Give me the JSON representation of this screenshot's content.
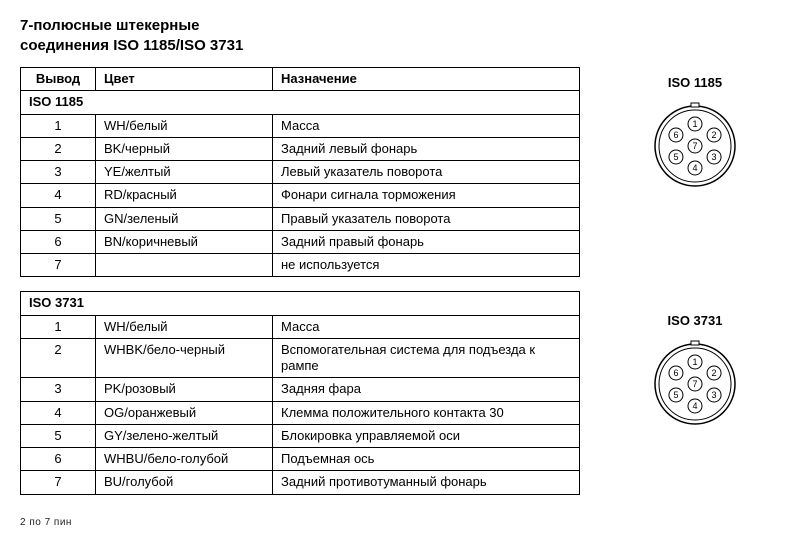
{
  "title_line1": "7-полюсные штекерные",
  "title_line2": "соединения ISO 1185/ISO 3731",
  "headers": {
    "pin": "Вывод",
    "color": "Цвет",
    "func": "Назначение"
  },
  "table1": {
    "section": "ISO 1185",
    "rows": [
      {
        "pin": "1",
        "color": "WH/белый",
        "func": "Масса"
      },
      {
        "pin": "2",
        "color": "BK/черный",
        "func": "Задний левый фонарь"
      },
      {
        "pin": "3",
        "color": "YE/желтый",
        "func": "Левый указатель поворота"
      },
      {
        "pin": "4",
        "color": "RD/красный",
        "func": "Фонари сигнала торможения"
      },
      {
        "pin": "5",
        "color": "GN/зеленый",
        "func": "Правый указатель поворота"
      },
      {
        "pin": "6",
        "color": "BN/коричневый",
        "func": "Задний правый фонарь"
      },
      {
        "pin": "7",
        "color": "",
        "func": "не используется"
      }
    ]
  },
  "table2": {
    "section": "ISO 3731",
    "rows": [
      {
        "pin": "1",
        "color": "WH/белый",
        "func": "Масса"
      },
      {
        "pin": "2",
        "color": "WHBK/бело-черный",
        "func": "Вспомогательная система для подъезда к рампе"
      },
      {
        "pin": "3",
        "color": "PK/розовый",
        "func": "Задняя фара"
      },
      {
        "pin": "4",
        "color": "OG/оранжевый",
        "func": "Клемма положительного контакта 30"
      },
      {
        "pin": "5",
        "color": "GY/зелено-желтый",
        "func": "Блокировка управляемой оси"
      },
      {
        "pin": "6",
        "color": "WHBU/бело-голубой",
        "func": "Подъемная ось"
      },
      {
        "pin": "7",
        "color": "BU/голубой",
        "func": "Задний противотуманный фонарь"
      }
    ]
  },
  "diagram1": {
    "label": "ISO 1185"
  },
  "diagram2": {
    "label": "ISO 3731"
  },
  "connector": {
    "outer_r": 40,
    "inner_ring_r": 36,
    "pin_r": 7,
    "pin_ring_r": 22,
    "stroke": "#000",
    "fill": "#fff",
    "positions_deg": [
      270,
      330,
      30,
      90,
      150,
      210
    ],
    "labels": [
      "1",
      "2",
      "3",
      "4",
      "5",
      "6",
      "7"
    ],
    "notch_w": 8,
    "notch_h": 4
  },
  "footer": "2 по 7 пин"
}
